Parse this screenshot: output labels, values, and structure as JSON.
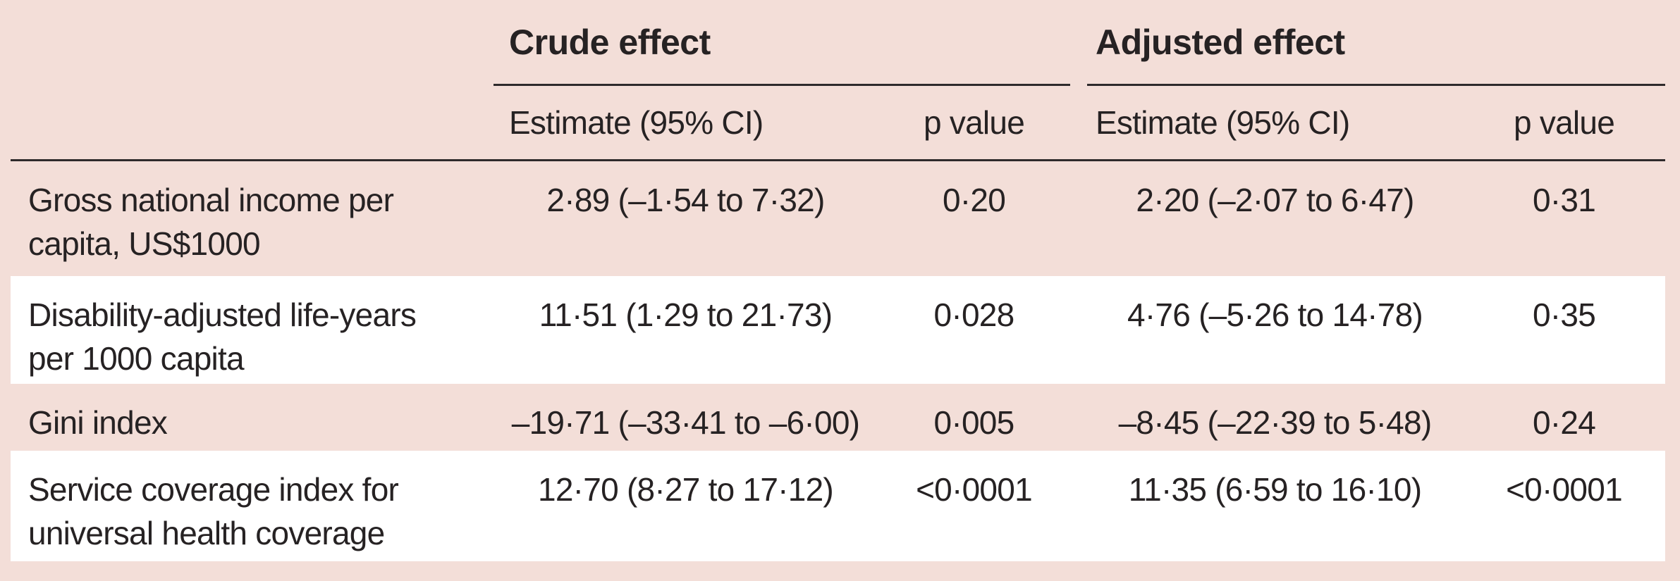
{
  "colors": {
    "page_pink": "#f3ded8",
    "stripe_white": "#ffffff",
    "rule_dark": "#2e2a2b",
    "text": "#262223"
  },
  "table": {
    "groups": [
      {
        "label": "Crude effect",
        "subcolumns": [
          "Estimate (95% CI)",
          "p value"
        ]
      },
      {
        "label": "Adjusted effect",
        "subcolumns": [
          "Estimate (95% CI)",
          "p value"
        ]
      }
    ],
    "rows": [
      {
        "label": "Gross national income per\ncapita, US$1000",
        "crude_estimate": "2·89 (–1·54 to 7·32)",
        "crude_p": "0·20",
        "adjusted_estimate": "2·20 (–2·07 to 6·47)",
        "adjusted_p": "0·31"
      },
      {
        "label": "Disability-adjusted life-years\nper 1000 capita",
        "crude_estimate": "11·51 (1·29 to 21·73)",
        "crude_p": "0·028",
        "adjusted_estimate": "4·76 (–5·26 to 14·78)",
        "adjusted_p": "0·35"
      },
      {
        "label": "Gini index",
        "crude_estimate": "–19·71 (–33·41 to –6·00)",
        "crude_p": "0·005",
        "adjusted_estimate": "–8·45 (–22·39 to 5·48)",
        "adjusted_p": "0·24"
      },
      {
        "label": "Service coverage index for\nuniversal health coverage",
        "crude_estimate": "12·70 (8·27 to 17·12)",
        "crude_p": "<0·0001",
        "adjusted_estimate": "11·35 (6·59 to 16·10)",
        "adjusted_p": "<0·0001"
      }
    ]
  }
}
